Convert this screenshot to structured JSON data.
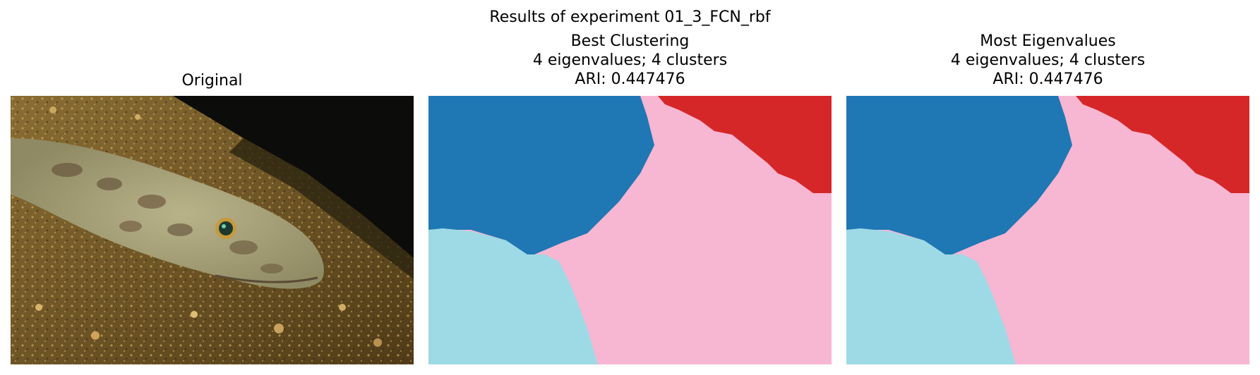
{
  "figure": {
    "suptitle": "Results of experiment 01_3_FCN_rbf"
  },
  "panels": [
    {
      "title_lines": [
        "Original"
      ],
      "content": "photograph of a flathead fish resting on sandy seafloor"
    },
    {
      "title_lines": [
        "Best Clustering",
        "4 eigenvalues; 4 clusters",
        "ARI: 0.447476"
      ],
      "content": "segmentation map"
    },
    {
      "title_lines": [
        "Most Eigenvalues",
        "4 eigenvalues; 4 clusters",
        "ARI: 0.447476"
      ],
      "content": "segmentation map"
    }
  ],
  "segmentation_colors": {
    "top_left": "#1f77b4",
    "top_right": "#d62728",
    "bottom_left": "#9edae5",
    "background": "#f7b6d2"
  }
}
